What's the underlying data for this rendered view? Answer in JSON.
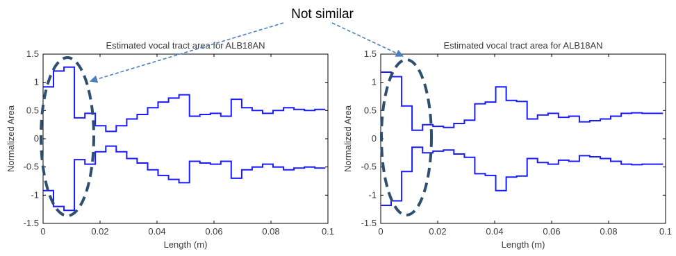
{
  "annotation": {
    "label": "Not similar",
    "arrow_color": "#4a7fc1",
    "ellipse_color": "#2f4f6f"
  },
  "colors": {
    "series": "#1a1aff",
    "axis": "#000000",
    "text": "#3a3a3a"
  },
  "chart_data": [
    {
      "type": "line",
      "step": true,
      "title": "Estimated vocal tract area for  ALB18AN",
      "xlabel": "Length (m)",
      "ylabel": "Normalized Area",
      "xlim": [
        0,
        0.1
      ],
      "ylim": [
        -1.5,
        1.5
      ],
      "xticks": [
        0,
        0.02,
        0.04,
        0.06,
        0.08,
        0.1
      ],
      "xtick_labels": [
        "0",
        "0.02",
        "0.04",
        "0.06",
        "0.08",
        "0.1"
      ],
      "yticks": [
        -1.5,
        -1,
        -0.5,
        0,
        0.5,
        1,
        1.5
      ],
      "ytick_labels": [
        "-1.5",
        "-1",
        "-0.5",
        "0",
        "0.5",
        "1",
        "1.5"
      ],
      "grid": false,
      "segment_width": 0.00367,
      "series": [
        {
          "values": [
            0.92,
            1.2,
            1.27,
            0.37,
            0.45,
            0.23,
            0.13,
            0.23,
            0.35,
            0.43,
            0.55,
            0.65,
            0.72,
            0.78,
            0.4,
            0.43,
            0.45,
            0.4,
            0.7,
            0.55,
            0.5,
            0.45,
            0.5,
            0.55,
            0.52,
            0.5,
            0.52
          ]
        },
        {
          "values": [
            -0.92,
            -1.2,
            -1.27,
            -0.37,
            -0.45,
            -0.23,
            -0.13,
            -0.23,
            -0.35,
            -0.43,
            -0.55,
            -0.65,
            -0.72,
            -0.78,
            -0.4,
            -0.43,
            -0.45,
            -0.4,
            -0.7,
            -0.55,
            -0.5,
            -0.45,
            -0.5,
            -0.55,
            -0.52,
            -0.5,
            -0.52
          ]
        }
      ]
    },
    {
      "type": "line",
      "step": true,
      "title": "Estimated vocal tract area for  ALB18AN",
      "xlabel": "Length (m)",
      "ylabel": "Normalized Area",
      "xlim": [
        0,
        0.1
      ],
      "ylim": [
        -1.5,
        1.5
      ],
      "xticks": [
        0,
        0.02,
        0.04,
        0.06,
        0.08,
        0.1
      ],
      "xtick_labels": [
        "0",
        "0.02",
        "0.04",
        "0.06",
        "0.08",
        "0.1"
      ],
      "yticks": [
        -1.5,
        -1,
        -0.5,
        0,
        0.5,
        1,
        1.5
      ],
      "ytick_labels": [
        "-1.5",
        "-1",
        "-0.5",
        "0",
        "0.5",
        "1",
        "1.5"
      ],
      "grid": false,
      "segment_width": 0.00367,
      "series": [
        {
          "values": [
            1.18,
            1.1,
            0.58,
            0.15,
            0.25,
            0.22,
            0.2,
            0.27,
            0.33,
            0.62,
            0.65,
            0.92,
            0.68,
            0.66,
            0.35,
            0.42,
            0.45,
            0.38,
            0.4,
            0.3,
            0.32,
            0.35,
            0.4,
            0.45,
            0.46,
            0.45,
            0.45
          ]
        },
        {
          "values": [
            -1.18,
            -1.1,
            -0.58,
            -0.15,
            -0.25,
            -0.22,
            -0.2,
            -0.27,
            -0.33,
            -0.62,
            -0.65,
            -0.92,
            -0.68,
            -0.66,
            -0.35,
            -0.42,
            -0.45,
            -0.38,
            -0.4,
            -0.3,
            -0.32,
            -0.35,
            -0.4,
            -0.45,
            -0.46,
            -0.45,
            -0.45
          ]
        }
      ]
    }
  ]
}
